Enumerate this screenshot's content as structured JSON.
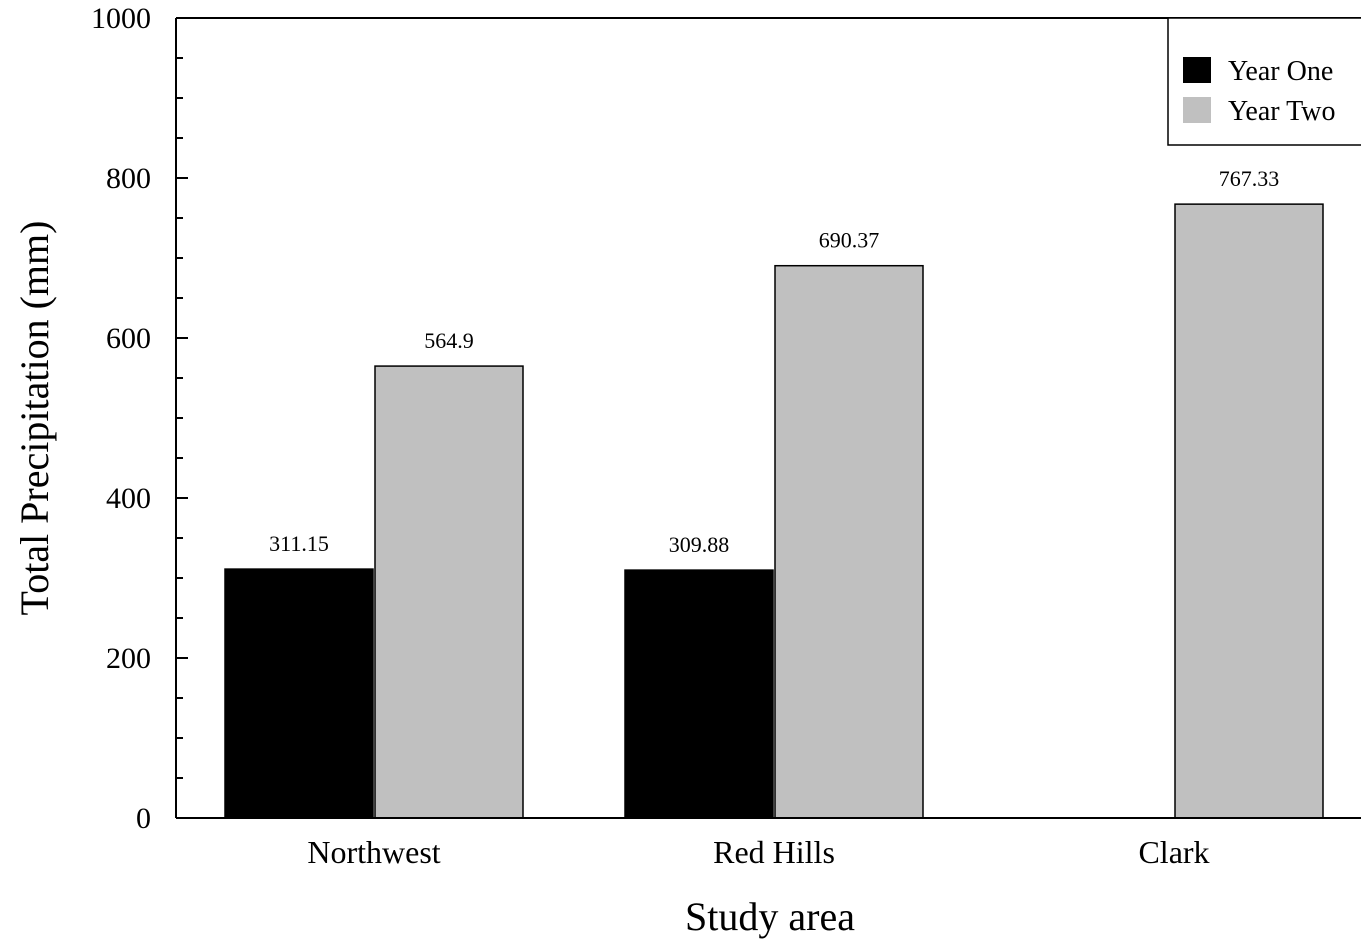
{
  "chart_data": {
    "type": "bar",
    "title": "",
    "xlabel": "Study area",
    "ylabel": "Total Precipitation (mm)",
    "categories": [
      "Northwest",
      "Red Hills",
      "Clark"
    ],
    "series": [
      {
        "name": "Year One",
        "color": "#000000",
        "values": [
          311.15,
          309.88,
          null
        ],
        "labels": [
          "311.15",
          "309.88",
          ""
        ]
      },
      {
        "name": "Year Two",
        "color": "#c0c0c0",
        "values": [
          564.9,
          690.37,
          767.33
        ],
        "labels": [
          "564.9",
          "690.37",
          "767.33"
        ]
      }
    ],
    "ylim": [
      0,
      1000
    ],
    "yticks": [
      0,
      200,
      400,
      600,
      800,
      1000
    ],
    "ytick_labels": [
      "0",
      "200",
      "400",
      "600",
      "800",
      "1000"
    ],
    "legend_position": "top-right",
    "grid": false
  }
}
